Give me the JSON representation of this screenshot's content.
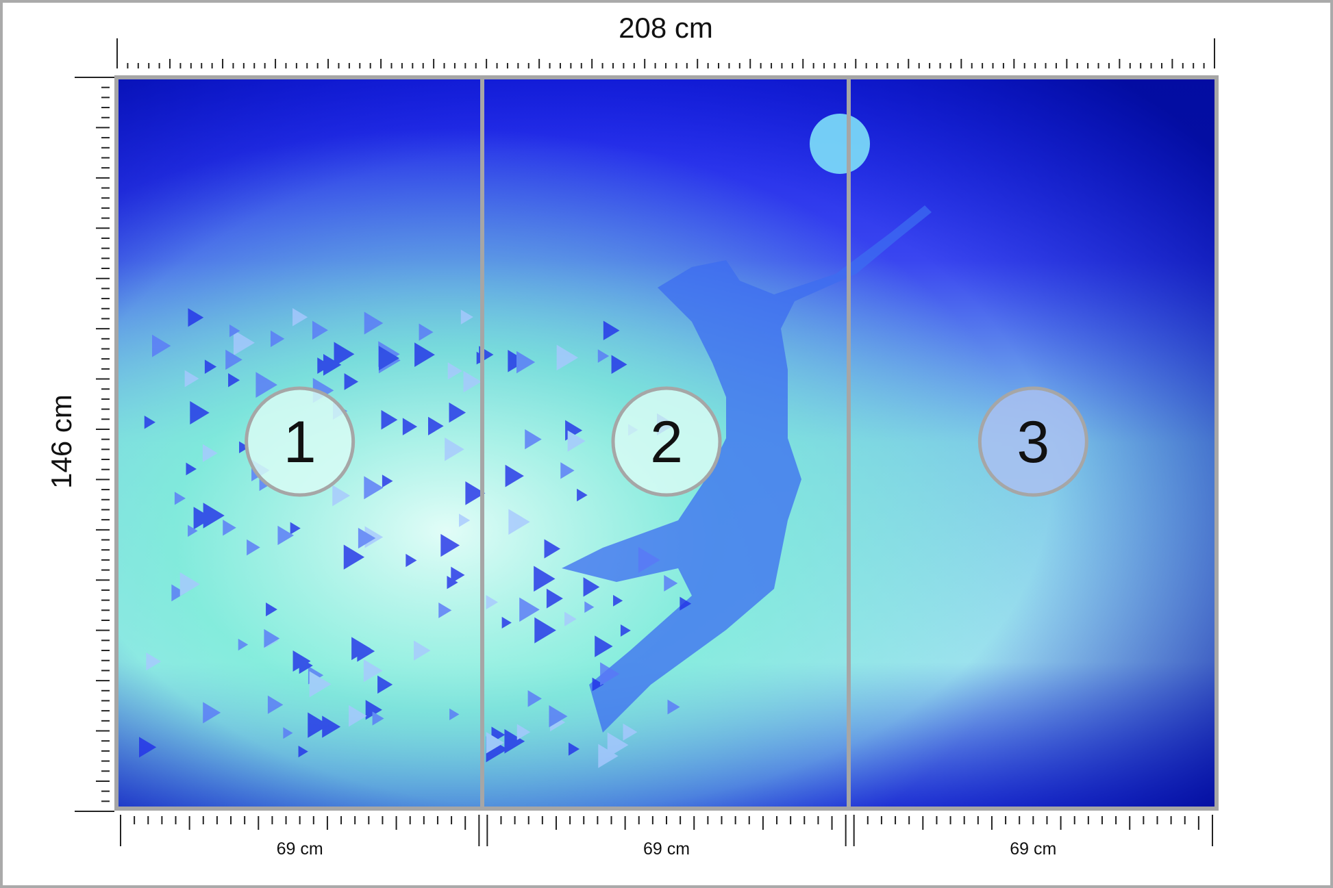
{
  "width_label": "208 cm",
  "height_label": "146 cm",
  "panels": [
    {
      "number": "1",
      "width": "69 cm"
    },
    {
      "number": "2",
      "width": "69 cm"
    },
    {
      "number": "3",
      "width": "69 cm"
    }
  ]
}
